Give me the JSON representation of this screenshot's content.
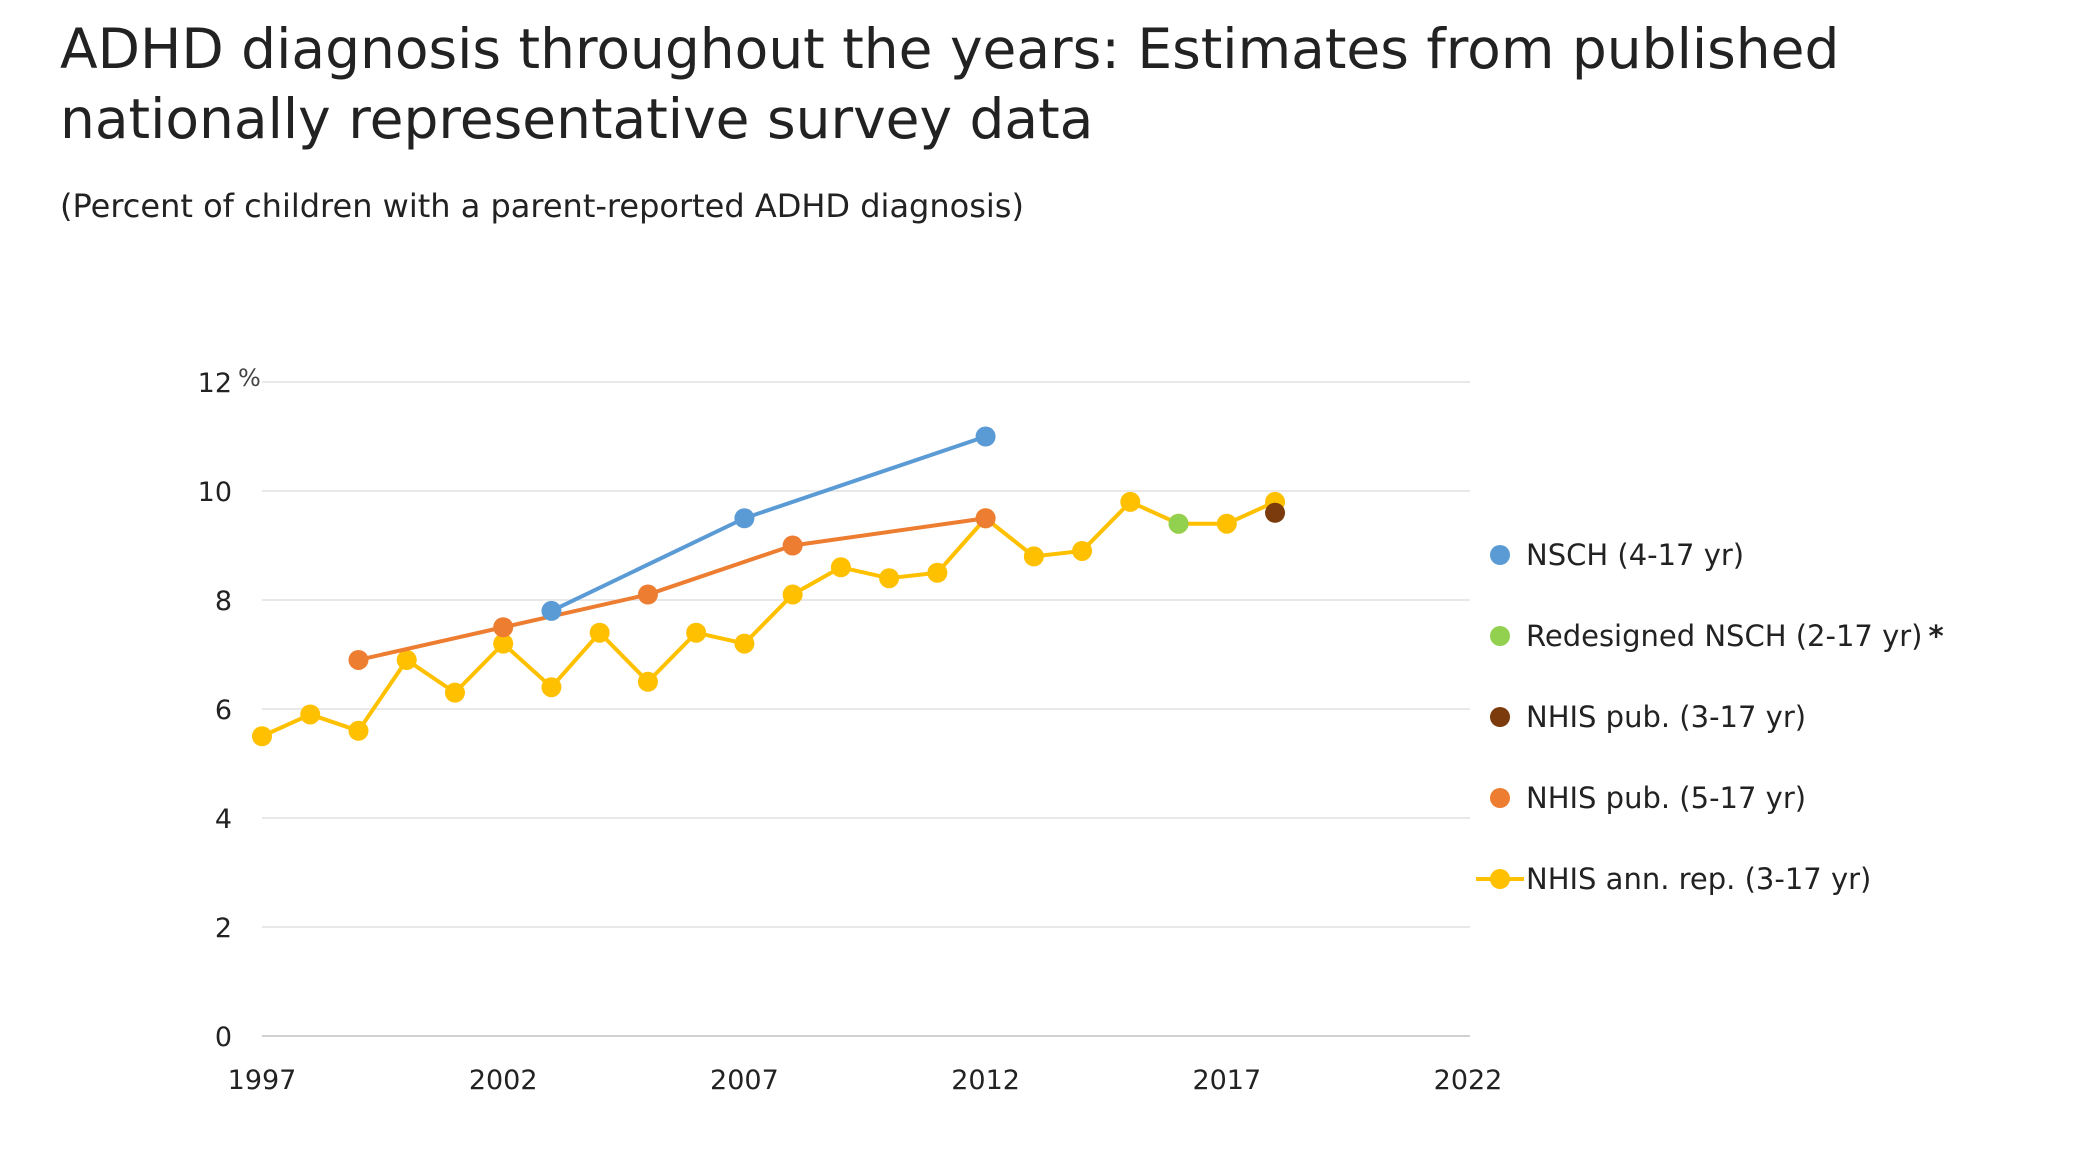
{
  "title": "ADHD diagnosis throughout the years: Estimates from published nationally representative survey data",
  "subtitle": "(Percent of children with a parent-reported ADHD diagnosis)",
  "chart_data": {
    "type": "line",
    "xlabel": "",
    "ylabel": "",
    "y_unit": "%",
    "xlim": [
      1997,
      2022
    ],
    "ylim": [
      0,
      12
    ],
    "xticks": [
      1997,
      2002,
      2007,
      2012,
      2017,
      2022
    ],
    "yticks": [
      0,
      2,
      4,
      6,
      8,
      10,
      12
    ],
    "grid": "horizontal",
    "legend_position": "right",
    "series": [
      {
        "name": "NSCH (4-17 yr)",
        "color": "#5b9bd5",
        "line": true,
        "x": [
          2003,
          2007,
          2012
        ],
        "y": [
          7.8,
          9.5,
          11.0
        ]
      },
      {
        "name": "Redesigned NSCH (2-17 yr)",
        "legend_suffix": "*",
        "color": "#92d050",
        "line": false,
        "x": [
          2016
        ],
        "y": [
          9.4
        ]
      },
      {
        "name": "NHIS pub. (3-17 yr)",
        "color": "#7b3b0c",
        "line": false,
        "x": [
          2018
        ],
        "y": [
          9.6
        ]
      },
      {
        "name": "NHIS pub. (5-17 yr)",
        "color": "#ed7d31",
        "line": true,
        "x": [
          1999,
          2002,
          2005,
          2008,
          2012
        ],
        "y": [
          6.9,
          7.5,
          8.1,
          9.0,
          9.5
        ]
      },
      {
        "name": "NHIS ann. rep. (3-17 yr)",
        "color": "#ffc000",
        "line": true,
        "legend_line": true,
        "x": [
          1997,
          1998,
          1999,
          2000,
          2001,
          2002,
          2003,
          2004,
          2005,
          2006,
          2007,
          2008,
          2009,
          2010,
          2011,
          2012,
          2013,
          2014,
          2015,
          2016,
          2017,
          2018
        ],
        "y": [
          5.5,
          5.9,
          5.6,
          6.9,
          6.3,
          7.2,
          6.4,
          7.4,
          6.5,
          7.4,
          7.2,
          8.1,
          8.6,
          8.4,
          8.5,
          9.5,
          8.8,
          8.9,
          9.8,
          9.4,
          9.4,
          9.8
        ]
      }
    ],
    "draw_order": [
      4,
      3,
      0,
      1,
      2
    ]
  }
}
